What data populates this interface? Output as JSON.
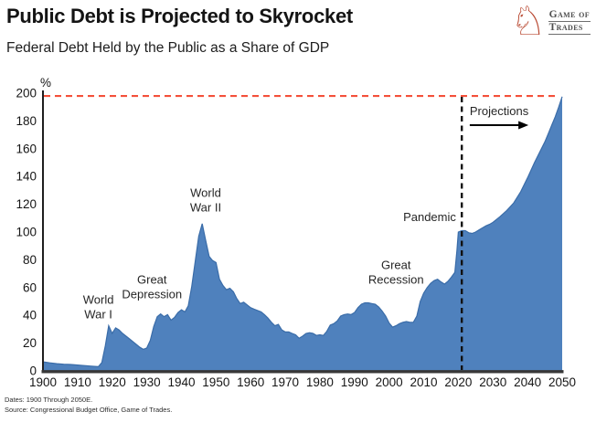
{
  "header": {
    "title": "Public Debt is Projected to Skyrocket",
    "subtitle": "Federal Debt Held by the Public as a Share of GDP"
  },
  "logo": {
    "icon": "knight-chess-piece",
    "icon_glyph": "♘",
    "icon_color": "#b94a33",
    "brand_line1": "Game of",
    "brand_line2": "Trades"
  },
  "footer": {
    "dates_note": "Dates: 1900 Through 2050E.",
    "source_note": "Source: Congressional Budget Office, Game of Trades."
  },
  "chart_data": {
    "type": "area",
    "title": "Public Debt is Projected to Skyrocket",
    "subtitle": "Federal Debt Held by the Public as a Share of GDP",
    "xlabel": "",
    "ylabel": "%",
    "xlim": [
      1900,
      2050
    ],
    "ylim": [
      0,
      200
    ],
    "x_ticks": [
      1900,
      1910,
      1920,
      1930,
      1940,
      1950,
      1960,
      1970,
      1980,
      1990,
      2000,
      2010,
      2020,
      2030,
      2040,
      2050
    ],
    "y_ticks": [
      0,
      20,
      40,
      60,
      80,
      100,
      120,
      140,
      160,
      180,
      200
    ],
    "grid": false,
    "legend": "none",
    "area_color": "#4f81bd",
    "area_edge_color": "#3a6ca8",
    "axis_color": "#2a2a2a",
    "threshold_line": {
      "value": 198,
      "color": "#f4503a",
      "style": "dashed"
    },
    "projection": {
      "divider_year": 2021,
      "divider_color": "#111111",
      "divider_style": "dashed",
      "label": "Projections",
      "label_year": 2023.3,
      "label_pct": 187,
      "arrow_from_year": 2023.3,
      "arrow_to_year": 2040,
      "arrow_pct": 177
    },
    "annotations": [
      {
        "id": "world-war-1",
        "lines": [
          "World",
          "War I"
        ],
        "year": 1916,
        "pct": 46
      },
      {
        "id": "great-depression",
        "lines": [
          "Great",
          "Depression"
        ],
        "year": 1931.5,
        "pct": 60.5
      },
      {
        "id": "world-war-2",
        "lines": [
          "World",
          "War II"
        ],
        "year": 1947,
        "pct": 123
      },
      {
        "id": "great-recession",
        "lines": [
          "Great",
          "Recession"
        ],
        "year": 2002,
        "pct": 71
      },
      {
        "id": "pandemic",
        "lines": [
          "Pandemic"
        ],
        "year": 2011.7,
        "pct": 111
      }
    ],
    "series": [
      {
        "name": "Federal Debt Held by the Public as a Share of GDP",
        "points": [
          [
            1900,
            6.5
          ],
          [
            1902,
            5.8
          ],
          [
            1904,
            5.2
          ],
          [
            1906,
            4.8
          ],
          [
            1908,
            4.6
          ],
          [
            1910,
            4.2
          ],
          [
            1912,
            3.8
          ],
          [
            1914,
            3.4
          ],
          [
            1916,
            3.0
          ],
          [
            1917,
            6
          ],
          [
            1918,
            18
          ],
          [
            1919,
            32.5
          ],
          [
            1920,
            27
          ],
          [
            1921,
            31
          ],
          [
            1922,
            29.5
          ],
          [
            1923,
            27
          ],
          [
            1924,
            25
          ],
          [
            1925,
            23
          ],
          [
            1926,
            21
          ],
          [
            1927,
            19
          ],
          [
            1928,
            17
          ],
          [
            1929,
            15.5
          ],
          [
            1930,
            16.5
          ],
          [
            1931,
            22
          ],
          [
            1932,
            32
          ],
          [
            1933,
            39
          ],
          [
            1934,
            41
          ],
          [
            1935,
            39
          ],
          [
            1936,
            40.5
          ],
          [
            1937,
            36.5
          ],
          [
            1938,
            38.5
          ],
          [
            1939,
            42
          ],
          [
            1940,
            44
          ],
          [
            1941,
            42.5
          ],
          [
            1942,
            47
          ],
          [
            1943,
            61
          ],
          [
            1944,
            79
          ],
          [
            1945,
            97
          ],
          [
            1946,
            106
          ],
          [
            1947,
            94
          ],
          [
            1948,
            82.5
          ],
          [
            1949,
            79.5
          ],
          [
            1950,
            78
          ],
          [
            1951,
            66
          ],
          [
            1952,
            61.5
          ],
          [
            1953,
            58.5
          ],
          [
            1954,
            59.5
          ],
          [
            1955,
            57
          ],
          [
            1956,
            52
          ],
          [
            1957,
            48.5
          ],
          [
            1958,
            49.5
          ],
          [
            1959,
            47.5
          ],
          [
            1960,
            45.5
          ],
          [
            1961,
            44.5
          ],
          [
            1962,
            43.5
          ],
          [
            1963,
            42.5
          ],
          [
            1964,
            40.5
          ],
          [
            1965,
            38
          ],
          [
            1966,
            35
          ],
          [
            1967,
            32.5
          ],
          [
            1968,
            33.5
          ],
          [
            1969,
            29.5
          ],
          [
            1970,
            28
          ],
          [
            1971,
            28
          ],
          [
            1972,
            27
          ],
          [
            1973,
            26
          ],
          [
            1974,
            23.5
          ],
          [
            1975,
            25
          ],
          [
            1976,
            27
          ],
          [
            1977,
            27.5
          ],
          [
            1978,
            27
          ],
          [
            1979,
            25.5
          ],
          [
            1980,
            26
          ],
          [
            1981,
            25.5
          ],
          [
            1982,
            28.5
          ],
          [
            1983,
            33
          ],
          [
            1984,
            34
          ],
          [
            1985,
            36
          ],
          [
            1986,
            39.5
          ],
          [
            1987,
            40.5
          ],
          [
            1988,
            41
          ],
          [
            1989,
            40.5
          ],
          [
            1990,
            42
          ],
          [
            1991,
            45.5
          ],
          [
            1992,
            48
          ],
          [
            1993,
            49
          ],
          [
            1994,
            49
          ],
          [
            1995,
            48.5
          ],
          [
            1996,
            48
          ],
          [
            1997,
            46
          ],
          [
            1998,
            43
          ],
          [
            1999,
            39.5
          ],
          [
            2000,
            34.5
          ],
          [
            2001,
            31.5
          ],
          [
            2002,
            32.5
          ],
          [
            2003,
            34
          ],
          [
            2004,
            35
          ],
          [
            2005,
            35.5
          ],
          [
            2006,
            35
          ],
          [
            2007,
            35
          ],
          [
            2008,
            39.5
          ],
          [
            2009,
            50
          ],
          [
            2010,
            56
          ],
          [
            2011,
            60
          ],
          [
            2012,
            63
          ],
          [
            2013,
            65
          ],
          [
            2014,
            66
          ],
          [
            2015,
            64
          ],
          [
            2016,
            62.5
          ],
          [
            2017,
            64.5
          ],
          [
            2018,
            67.5
          ],
          [
            2019,
            71
          ],
          [
            2019.6,
            87
          ],
          [
            2020,
            100
          ],
          [
            2021,
            101
          ],
          [
            2022,
            101
          ],
          [
            2023,
            99.5
          ],
          [
            2024,
            99
          ],
          [
            2025,
            100
          ],
          [
            2026,
            101.5
          ],
          [
            2027,
            103
          ],
          [
            2028,
            104.5
          ],
          [
            2029,
            105.5
          ],
          [
            2030,
            107
          ],
          [
            2032,
            111
          ],
          [
            2034,
            115.5
          ],
          [
            2036,
            121
          ],
          [
            2038,
            129
          ],
          [
            2040,
            139
          ],
          [
            2042,
            150
          ],
          [
            2044,
            160
          ],
          [
            2045,
            165
          ],
          [
            2046,
            171
          ],
          [
            2047,
            177
          ],
          [
            2048,
            183
          ],
          [
            2049,
            190
          ],
          [
            2050,
            197.5
          ]
        ]
      }
    ]
  }
}
